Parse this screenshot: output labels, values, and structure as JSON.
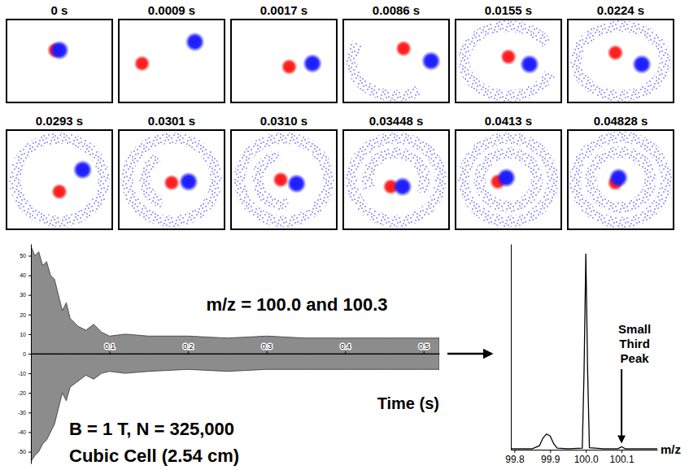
{
  "chart_data": [
    {
      "type": "scatter",
      "title": "0 s",
      "tick_labels": false,
      "xlim": [
        0,
        1
      ],
      "ylim": [
        0,
        1
      ],
      "series": [
        {
          "color": "#ff1a1a",
          "x": [
            0.46
          ],
          "values": [
            0.63
          ]
        },
        {
          "color": "#1a1aff",
          "x": [
            0.5
          ],
          "values": [
            0.63
          ]
        }
      ]
    },
    {
      "type": "scatter",
      "title": "0.0009 s",
      "tick_labels": false,
      "xlim": [
        0,
        1
      ],
      "ylim": [
        0,
        1
      ],
      "series": [
        {
          "color": "#ff1a1a",
          "x": [
            0.22
          ],
          "values": [
            0.47
          ]
        },
        {
          "color": "#1a1aff",
          "x": [
            0.72
          ],
          "values": [
            0.73
          ]
        }
      ]
    },
    {
      "type": "scatter",
      "title": "0.0017 s",
      "tick_labels": false,
      "xlim": [
        0,
        1
      ],
      "ylim": [
        0,
        1
      ],
      "series": [
        {
          "color": "#ff1a1a",
          "x": [
            0.55
          ],
          "values": [
            0.43
          ]
        },
        {
          "color": "#1a1aff",
          "x": [
            0.77
          ],
          "values": [
            0.47
          ]
        }
      ]
    },
    {
      "type": "scatter",
      "title": "0.0086 s",
      "tick_labels": false,
      "xlim": [
        0,
        1
      ],
      "ylim": [
        0,
        1
      ],
      "series": [
        {
          "color": "#ff1a1a",
          "x": [
            0.57
          ],
          "values": [
            0.65
          ]
        },
        {
          "color": "#1a1aff",
          "x": [
            0.83
          ],
          "values": [
            0.5
          ]
        }
      ],
      "rings": [
        {
          "color": "#1a1aff",
          "x": 0.5,
          "y": 0.5,
          "r": 0.42,
          "arc": [
            150,
            300
          ]
        }
      ]
    },
    {
      "type": "scatter",
      "title": "0.0155 s",
      "tick_labels": false,
      "xlim": [
        0,
        1
      ],
      "ylim": [
        0,
        1
      ],
      "series": [
        {
          "color": "#ff1a1a",
          "x": [
            0.5
          ],
          "values": [
            0.55
          ]
        },
        {
          "color": "#1a1aff",
          "x": [
            0.7
          ],
          "values": [
            0.46
          ]
        }
      ],
      "rings": [
        {
          "color": "#1a1aff",
          "x": 0.5,
          "y": 0.5,
          "r": 0.42,
          "arc": [
            110,
            420
          ]
        }
      ]
    },
    {
      "type": "scatter",
      "title": "0.0224 s",
      "tick_labels": false,
      "xlim": [
        0,
        1
      ],
      "ylim": [
        0,
        1
      ],
      "series": [
        {
          "color": "#ff1a1a",
          "x": [
            0.45
          ],
          "values": [
            0.6
          ]
        },
        {
          "color": "#1a1aff",
          "x": [
            0.7
          ],
          "values": [
            0.46
          ]
        }
      ],
      "rings": [
        {
          "color": "#1a1aff",
          "x": 0.5,
          "y": 0.5,
          "r": 0.42,
          "arc": [
            0,
            360
          ]
        }
      ]
    },
    {
      "type": "scatter",
      "title": "0.0293 s",
      "tick_labels": false,
      "xlim": [
        0,
        1
      ],
      "ylim": [
        0,
        1
      ],
      "series": [
        {
          "color": "#ff1a1a",
          "x": [
            0.5
          ],
          "values": [
            0.38
          ]
        },
        {
          "color": "#1a1aff",
          "x": [
            0.72
          ],
          "values": [
            0.6
          ]
        }
      ],
      "rings": [
        {
          "color": "#1a1aff",
          "x": 0.5,
          "y": 0.5,
          "r": 0.42,
          "arc": [
            0,
            360
          ]
        }
      ]
    },
    {
      "type": "scatter",
      "title": "0.0301 s",
      "tick_labels": false,
      "xlim": [
        0,
        1
      ],
      "ylim": [
        0,
        1
      ],
      "series": [
        {
          "color": "#ff1a1a",
          "x": [
            0.5
          ],
          "values": [
            0.47
          ]
        },
        {
          "color": "#1a1aff",
          "x": [
            0.66
          ],
          "values": [
            0.48
          ]
        }
      ],
      "rings": [
        {
          "color": "#1a1aff",
          "x": 0.5,
          "y": 0.5,
          "r": 0.42,
          "arc": [
            0,
            360
          ]
        },
        {
          "color": "#1a1aff",
          "x": 0.5,
          "y": 0.5,
          "r": 0.25,
          "arc": [
            200,
            330
          ]
        }
      ]
    },
    {
      "type": "scatter",
      "title": "0.0310 s",
      "tick_labels": false,
      "xlim": [
        0,
        1
      ],
      "ylim": [
        0,
        1
      ],
      "series": [
        {
          "color": "#ff1a1a",
          "x": [
            0.47
          ],
          "values": [
            0.5
          ]
        },
        {
          "color": "#1a1aff",
          "x": [
            0.62
          ],
          "values": [
            0.46
          ]
        }
      ],
      "rings": [
        {
          "color": "#1a1aff",
          "x": 0.5,
          "y": 0.5,
          "r": 0.42,
          "arc": [
            0,
            360
          ]
        },
        {
          "color": "#1a1aff",
          "x": 0.5,
          "y": 0.5,
          "r": 0.25,
          "arc": [
            170,
            350
          ]
        }
      ]
    },
    {
      "type": "scatter",
      "title": "0.03448 s",
      "tick_labels": false,
      "xlim": [
        0,
        1
      ],
      "ylim": [
        0,
        1
      ],
      "series": [
        {
          "color": "#ff1a1a",
          "x": [
            0.45
          ],
          "values": [
            0.43
          ]
        },
        {
          "color": "#1a1aff",
          "x": [
            0.56
          ],
          "values": [
            0.43
          ]
        }
      ],
      "rings": [
        {
          "color": "#1a1aff",
          "x": 0.5,
          "y": 0.5,
          "r": 0.42,
          "arc": [
            0,
            360
          ]
        },
        {
          "color": "#1a1aff",
          "x": 0.5,
          "y": 0.5,
          "r": 0.27,
          "arc": [
            250,
            480
          ]
        }
      ]
    },
    {
      "type": "scatter",
      "title": "0.0413 s",
      "tick_labels": false,
      "xlim": [
        0,
        1
      ],
      "ylim": [
        0,
        1
      ],
      "series": [
        {
          "color": "#ff1a1a",
          "x": [
            0.4
          ],
          "values": [
            0.48
          ]
        },
        {
          "color": "#1a1aff",
          "x": [
            0.48
          ],
          "values": [
            0.52
          ]
        }
      ],
      "rings": [
        {
          "color": "#1a1aff",
          "x": 0.5,
          "y": 0.5,
          "r": 0.42,
          "arc": [
            0,
            360
          ]
        },
        {
          "color": "#1a1aff",
          "x": 0.5,
          "y": 0.5,
          "r": 0.27,
          "arc": [
            0,
            360
          ]
        }
      ]
    },
    {
      "type": "scatter",
      "title": "0.04828 s",
      "tick_labels": false,
      "xlim": [
        0,
        1
      ],
      "ylim": [
        0,
        1
      ],
      "series": [
        {
          "color": "#ff1a1a",
          "x": [
            0.45
          ],
          "values": [
            0.47
          ]
        },
        {
          "color": "#1a1aff",
          "x": [
            0.48
          ],
          "values": [
            0.52
          ]
        }
      ],
      "rings": [
        {
          "color": "#1a1aff",
          "x": 0.5,
          "y": 0.5,
          "r": 0.43,
          "arc": [
            0,
            360
          ]
        },
        {
          "color": "#1a1aff",
          "x": 0.5,
          "y": 0.5,
          "r": 0.28,
          "arc": [
            0,
            360
          ]
        }
      ]
    },
    {
      "type": "area",
      "title": "m/z = 100.0 and 100.3",
      "xlabel": "Time (s)",
      "annotations": [
        "B = 1 T, N = 325,000",
        "Cubic Cell (2.54 cm)"
      ],
      "x": [
        0,
        0.005,
        0.01,
        0.015,
        0.02,
        0.025,
        0.03,
        0.035,
        0.04,
        0.045,
        0.05,
        0.06,
        0.07,
        0.08,
        0.09,
        0.1,
        0.12,
        0.15,
        0.2,
        0.25,
        0.3,
        0.35,
        0.4,
        0.45,
        0.5,
        0.52
      ],
      "series": [
        {
          "color": "#8c8c8c",
          "values": [
            55,
            50,
            52,
            45,
            47,
            40,
            38,
            30,
            22,
            26,
            18,
            14,
            12,
            15,
            11,
            9,
            10,
            9,
            9,
            8,
            9,
            8,
            8,
            8,
            8,
            8
          ]
        },
        {
          "color": "#8c8c8c",
          "values": [
            -55,
            -52,
            -50,
            -46,
            -44,
            -40,
            -36,
            -28,
            -20,
            -24,
            -17,
            -14,
            -11,
            -13,
            -10,
            -9,
            -10,
            -9,
            -8,
            -9,
            -8,
            -8,
            -8,
            -8,
            -8,
            -8
          ]
        }
      ],
      "xlim": [
        0,
        0.52
      ],
      "xticks": [
        0.1,
        0.2,
        0.3,
        0.4,
        0.5
      ],
      "ylim": [
        -56,
        56
      ],
      "yticks": [
        -50,
        -40,
        -30,
        -20,
        -10,
        0,
        10,
        20,
        30,
        40,
        50
      ]
    },
    {
      "type": "line",
      "xlabel": "m/z",
      "x": [
        99.79,
        99.85,
        99.87,
        99.88,
        99.89,
        99.9,
        99.91,
        99.92,
        99.95,
        99.99,
        99.995,
        100,
        100.005,
        100.01,
        100.05,
        100.09,
        100.1,
        100.11,
        100.2
      ],
      "series": [
        {
          "color": "#000000",
          "values": [
            0.5,
            0.5,
            2,
            6,
            8,
            7,
            3,
            0.8,
            0.5,
            0.8,
            40,
            100,
            40,
            1,
            0.5,
            0.5,
            1.5,
            0.5,
            0.5
          ]
        }
      ],
      "xlim": [
        99.79,
        100.2
      ],
      "xticks": [
        99.8,
        99.9,
        {
          "value": 100,
          "label": "100.0"
        },
        100.1
      ],
      "ylim": [
        0,
        105
      ],
      "tick_labels": "x",
      "annotations": [
        {
          "text": "Small Third Peak",
          "x": 100.1,
          "y": 1.5
        }
      ]
    }
  ]
}
